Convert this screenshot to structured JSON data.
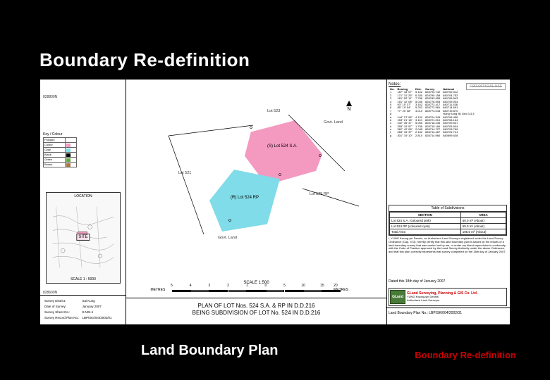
{
  "slide": {
    "title": "Boundary Re-definition",
    "caption": "Land Boundary  Plan",
    "tag": "Boundary Re-definition"
  },
  "plan": {
    "grid_labels": [
      "828800N",
      "828600N"
    ],
    "north": "N",
    "key": {
      "title": "Key / Colour",
      "rows": [
        {
          "label": "Polygon",
          "color": "#ffffff"
        },
        {
          "label": "Colour",
          "color": "#f49ac1"
        },
        {
          "label": "Cyan",
          "color": "#7fdce8"
        },
        {
          "label": "Black",
          "color": "#000000"
        },
        {
          "label": "Green",
          "color": "#66aa44"
        },
        {
          "label": "Brown",
          "color": "#aa7744"
        }
      ]
    },
    "location": {
      "title": "LOCATION",
      "site": "SITE",
      "scale": "SCALE 1 : 5000"
    },
    "center": {
      "lot_sa_label": "(S)\nLot 524 S.A.",
      "lot_rp_label": "(R)\nLot 524 RP",
      "anno_top": "Lot 523",
      "anno_govt": "Govt. Land",
      "anno_left": "Lot 521",
      "anno_right": "Lot 525 RP",
      "anno_bottom": "Govt. Land",
      "scale_text": "SCALE 1:500",
      "scale_label": "METRES",
      "scale_ticks": [
        "5",
        "4",
        "3",
        "2",
        "1",
        "0",
        "5",
        "10",
        "15",
        "20 METRES"
      ],
      "title_line1": "PLAN OF LOT Nos. 524 S.A. & RP IN D.D.216",
      "title_line2": "BEING SUBDIVISION OF LOT No. 524 IN D.D.216"
    },
    "surveyor": {
      "district_label": "Survey District:",
      "district": "Sai Kung",
      "date_label": "Date of Survey:",
      "date": "January 2007",
      "sheet_label": "Survey Sheet No.:",
      "sheet": "8-NW-4",
      "record_label": "Survey Record Plan No.:",
      "record": "LBP/SK/004/2002/01"
    },
    "notes": {
      "title": "Notes:",
      "official": "FOR OFFICIAL USE",
      "header": [
        "No.",
        "Bearing",
        "Dist.",
        "Survey",
        "National"
      ],
      "rows": [
        [
          "1",
          "187° 18' 07\"",
          "5.102",
          "828793.742",
          "840702.012"
        ],
        [
          "2",
          "171° 31' 25\"",
          "6.330",
          "828790.158",
          "840704.752"
        ],
        [
          "3",
          "161° 52' 11\"",
          "7.758",
          "828783.955",
          "840706.543"
        ],
        [
          "4",
          "151° 42' 08\"",
          "5.045",
          "828776.593",
          "840709.004"
        ],
        [
          "5",
          "93° 15' 37\"",
          "3.162",
          "828772.417",
          "840711.538"
        ],
        [
          "6",
          "85° 19' 54\"",
          "5.202",
          "828772.581",
          "840714.691"
        ],
        [
          "7",
          "77° 20' 08\"",
          "4.010",
          "828773.043",
          "840719.870"
        ],
        [
          "8",
          "",
          "",
          "",
          "Hong Kong 80 Grid 3.3.3"
        ],
        [
          "a",
          "144° 27' 08\"",
          "4.102",
          "828724.343",
          "840706.456"
        ],
        [
          "b",
          "153° 21' 18\"",
          "3.110",
          "828721.010",
          "840708.164"
        ],
        [
          "c",
          "232° 35' 37\"",
          "5.060",
          "828718.235",
          "840709.547"
        ],
        [
          "d",
          "255° 15' 57\"",
          "1.758",
          "828715.184",
          "840705.504"
        ],
        [
          "e",
          "262° 42' 08\"",
          "2.045",
          "828714.727",
          "840703.769"
        ],
        [
          "f",
          "283° 15' 37\"",
          "2.162",
          "828714.467",
          "840701.741"
        ],
        [
          "g",
          "301° 19' 10\"",
          "2.810",
          "828714.960",
          "840699.638"
        ]
      ]
    },
    "subdivisions": {
      "title": "Table of Subdivisions",
      "header": [
        "SECTION",
        "AREA"
      ],
      "rows": [
        [
          "Lot 524 S.A. (coloured pink)",
          "50.0 m² (About)"
        ],
        [
          "Lot 524 RP (coloured cyan)",
          "55.0 m² (About)"
        ],
        [
          "Total Area",
          "105.0 m² (About)"
        ]
      ]
    },
    "cert": "I, YUNG Kwong-yin Dennis, an Authorized Land Surveyor registered under the Land Survey Ordinance (Cap. 473), hereby certify that this land boundary plan is based on the results of a land boundary survey that was carried out by me, or under my direct supervision in conformity with the Code of Practice approved by the Land Survey Authority under the above Ordinance, and that this plan correctly represents that survey completed on the 18th day of January 2007.",
    "date_line": "Dated this 18th day of January 2007.",
    "company": {
      "logo_text": "GLand",
      "name": "GLand Surveying, Planning & GIS Co. Ltd.",
      "line1": "YUNG Kwong-yin Dennis",
      "line2": "Authorized Land Surveyor"
    },
    "lbp": {
      "label": "Land Boundary Plan No.:",
      "no": "LBP/SK/004/2002/01"
    }
  }
}
